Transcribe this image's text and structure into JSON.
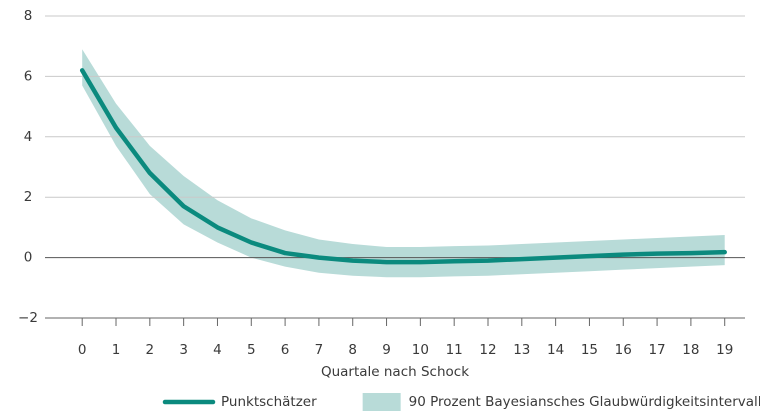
{
  "chart_data": {
    "type": "line",
    "x_label": "Quartale nach Schock",
    "x": [
      0,
      1,
      2,
      3,
      4,
      5,
      6,
      7,
      8,
      9,
      10,
      11,
      12,
      13,
      14,
      15,
      16,
      17,
      18,
      19
    ],
    "series": [
      {
        "name": "Punktschätzer",
        "color": "#0b8a7e",
        "values": [
          6.2,
          4.3,
          2.8,
          1.7,
          1.0,
          0.5,
          0.15,
          0.0,
          -0.1,
          -0.15,
          -0.15,
          -0.12,
          -0.1,
          -0.05,
          0.0,
          0.05,
          0.1,
          0.13,
          0.15,
          0.18
        ]
      }
    ],
    "band": {
      "name": "90 Prozent Bayesiansches Glaubwürdigkeitsintervall",
      "color": "#b8dbd8",
      "lower": [
        5.7,
        3.7,
        2.1,
        1.1,
        0.5,
        0.0,
        -0.3,
        -0.5,
        -0.6,
        -0.65,
        -0.65,
        -0.62,
        -0.6,
        -0.55,
        -0.5,
        -0.45,
        -0.4,
        -0.35,
        -0.3,
        -0.25
      ],
      "upper": [
        6.9,
        5.1,
        3.7,
        2.7,
        1.9,
        1.3,
        0.9,
        0.6,
        0.45,
        0.35,
        0.35,
        0.38,
        0.4,
        0.45,
        0.5,
        0.55,
        0.6,
        0.65,
        0.7,
        0.75
      ]
    },
    "xlim": [
      -1.1,
      19.6
    ],
    "xticks": [
      0,
      1,
      2,
      3,
      4,
      5,
      6,
      7,
      8,
      9,
      10,
      11,
      12,
      13,
      14,
      15,
      16,
      17,
      18,
      19
    ],
    "ylim": [
      -2,
      8
    ],
    "yticks": [
      {
        "value": -2,
        "label": "−2"
      },
      0,
      2,
      4,
      6,
      8
    ],
    "grid": true,
    "legend": "bottom"
  }
}
